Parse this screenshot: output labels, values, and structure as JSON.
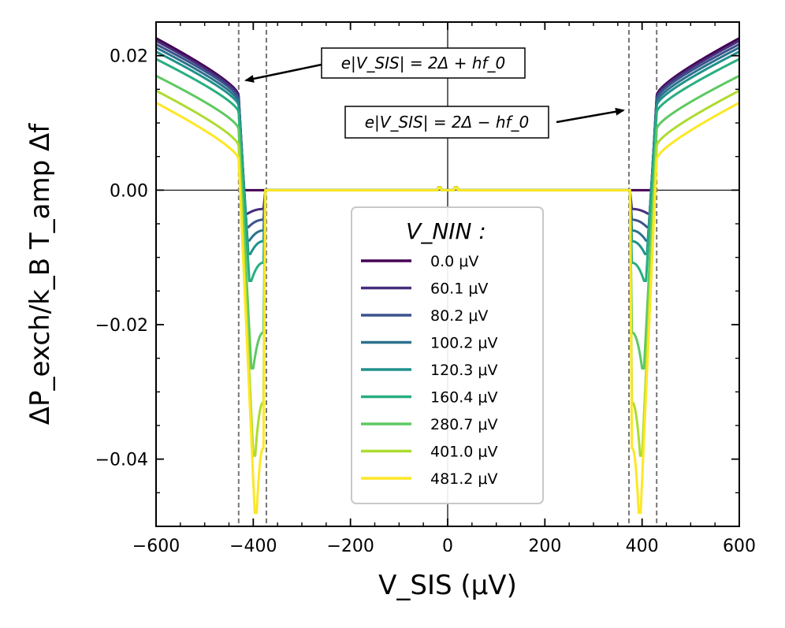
{
  "chart_data": {
    "type": "line",
    "xlabel": "V_SIS (μV)",
    "ylabel": "ΔP_exch/k_B T_amp Δf",
    "xlim": [
      -600,
      600
    ],
    "ylim": [
      -0.05,
      0.025
    ],
    "x_ticks": [
      -600,
      -400,
      -200,
      0,
      200,
      400,
      600
    ],
    "x_tick_labels": [
      "−600",
      "−400",
      "−200",
      "0",
      "200",
      "400",
      "600"
    ],
    "y_ticks": [
      0.02,
      0.0,
      -0.02,
      -0.04
    ],
    "y_tick_labels": [
      "0.02",
      "0.00",
      "−0.02",
      "−0.04"
    ],
    "reference_lines": {
      "zero_axes": true,
      "dashed_verticals_x": [
        -430,
        -373,
        373,
        430
      ]
    },
    "legend": {
      "title": "V_NIN :",
      "placement": "lower center"
    },
    "annotations": [
      {
        "text": "e|V_SIS| = 2Δ + hf_0",
        "arrow_to": [
          -415,
          0.0165
        ]
      },
      {
        "text": "e|V_SIS| = 2Δ − hf_0",
        "arrow_to": [
          360,
          0.0115
        ]
      }
    ],
    "series": [
      {
        "name": "0.0 μV",
        "color": "#440154",
        "outer_edge": 0.0226,
        "outer_start": 0.014,
        "dip": 0.0,
        "gap_edge": 415
      },
      {
        "name": "60.1 μV",
        "color": "#472d7b",
        "outer_edge": 0.0222,
        "outer_start": 0.0138,
        "dip": -0.0035,
        "gap_edge": 412
      },
      {
        "name": "80.2 μV",
        "color": "#3b528b",
        "outer_edge": 0.0217,
        "outer_start": 0.0135,
        "dip": -0.0055,
        "gap_edge": 410
      },
      {
        "name": "100.2 μV",
        "color": "#2c728e",
        "outer_edge": 0.0212,
        "outer_start": 0.013,
        "dip": -0.0075,
        "gap_edge": 408
      },
      {
        "name": "120.3 μV",
        "color": "#21918c",
        "outer_edge": 0.0206,
        "outer_start": 0.0125,
        "dip": -0.0095,
        "gap_edge": 406
      },
      {
        "name": "160.4 μV",
        "color": "#28ae80",
        "outer_edge": 0.0195,
        "outer_start": 0.0115,
        "dip": -0.0135,
        "gap_edge": 404
      },
      {
        "name": "280.7 μV",
        "color": "#5ec962",
        "outer_edge": 0.017,
        "outer_start": 0.009,
        "dip": -0.0265,
        "gap_edge": 400
      },
      {
        "name": "401.0 μV",
        "color": "#addc30",
        "outer_edge": 0.0148,
        "outer_start": 0.0065,
        "dip": -0.0395,
        "gap_edge": 396
      },
      {
        "name": "481.2 μV",
        "color": "#fde725",
        "outer_edge": 0.013,
        "outer_start": 0.0045,
        "dip": -0.048,
        "gap_edge": 393
      }
    ]
  }
}
